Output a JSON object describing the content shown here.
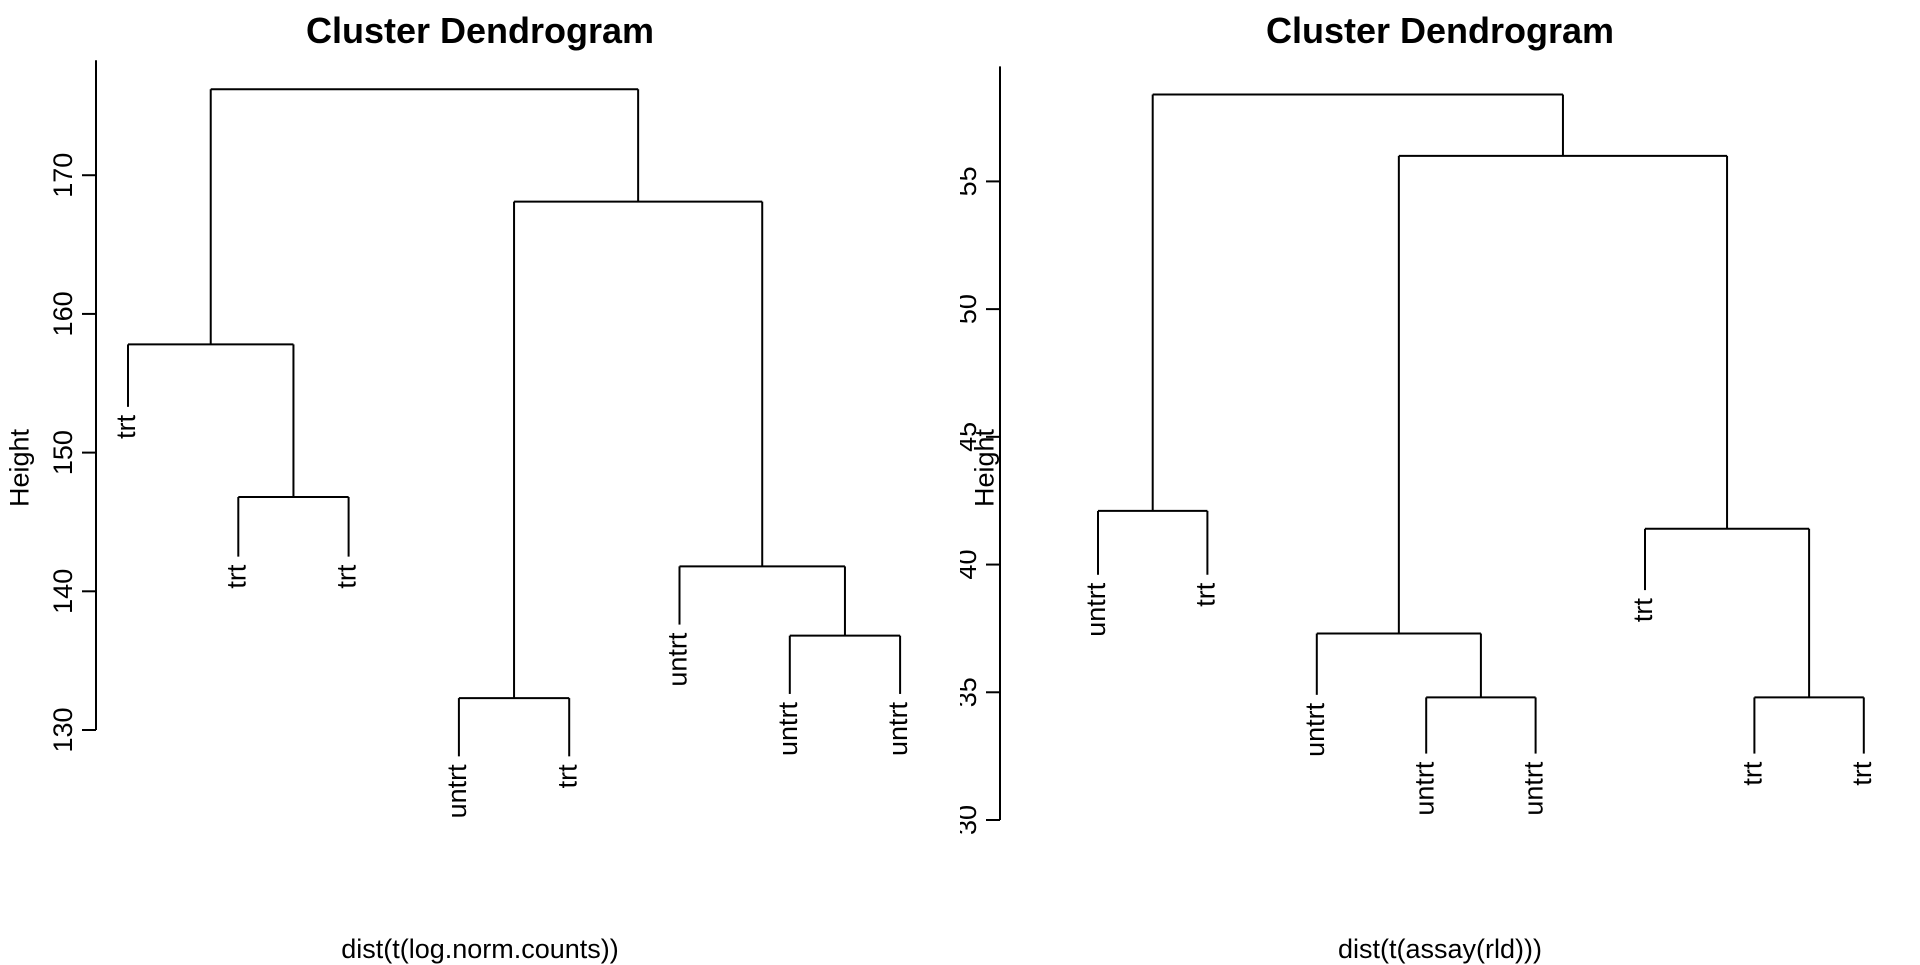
{
  "chart_data": [
    {
      "type": "dendrogram",
      "title": "Cluster Dendrogram",
      "xlabel": "dist(t(log.norm.counts))",
      "ylabel": "Height",
      "ylim": [
        130,
        176
      ],
      "yticks": [
        130,
        140,
        150,
        160,
        170
      ],
      "leaves": [
        "trt",
        "trt",
        "trt",
        "untrt",
        "trt",
        "untrt",
        "untrt",
        "untrt"
      ],
      "leaf_label_heights": [
        153.3,
        142.5,
        142.5,
        128.1,
        128.1,
        137.6,
        132.6,
        132.6
      ],
      "merges": [
        {
          "left": 2,
          "right": 3,
          "height": 146.8
        },
        {
          "left": 1,
          "right": "m0",
          "height": 157.8
        },
        {
          "left": 4,
          "right": 5,
          "height": 132.3
        },
        {
          "left": 7,
          "right": 8,
          "height": 136.8
        },
        {
          "left": 6,
          "right": "m3",
          "height": 141.8
        },
        {
          "left": "m2",
          "right": "m4",
          "height": 168.1
        },
        {
          "left": "m1",
          "right": "m5",
          "height": 176.2
        }
      ]
    },
    {
      "type": "dendrogram",
      "title": "Cluster Dendrogram",
      "xlabel": "dist(t(assay(rld)))",
      "ylabel": "Height",
      "ylim": [
        30,
        58.5
      ],
      "yticks": [
        30,
        35,
        40,
        45,
        50,
        55
      ],
      "leaves": [
        "untrt",
        "trt",
        "untrt",
        "untrt",
        "untrt",
        "trt",
        "trt",
        "trt"
      ],
      "leaf_label_heights": [
        39.6,
        39.6,
        34.9,
        32.6,
        32.6,
        39.0,
        32.6,
        32.6
      ],
      "merges": [
        {
          "left": 1,
          "right": 2,
          "height": 42.1
        },
        {
          "left": 4,
          "right": 5,
          "height": 34.8
        },
        {
          "left": 3,
          "right": "m1",
          "height": 37.3
        },
        {
          "left": 7,
          "right": 8,
          "height": 34.8
        },
        {
          "left": 6,
          "right": "m3",
          "height": 41.4
        },
        {
          "left": "m2",
          "right": "m4",
          "height": 56.0
        },
        {
          "left": "m0",
          "right": "m5",
          "height": 58.4
        }
      ]
    }
  ]
}
